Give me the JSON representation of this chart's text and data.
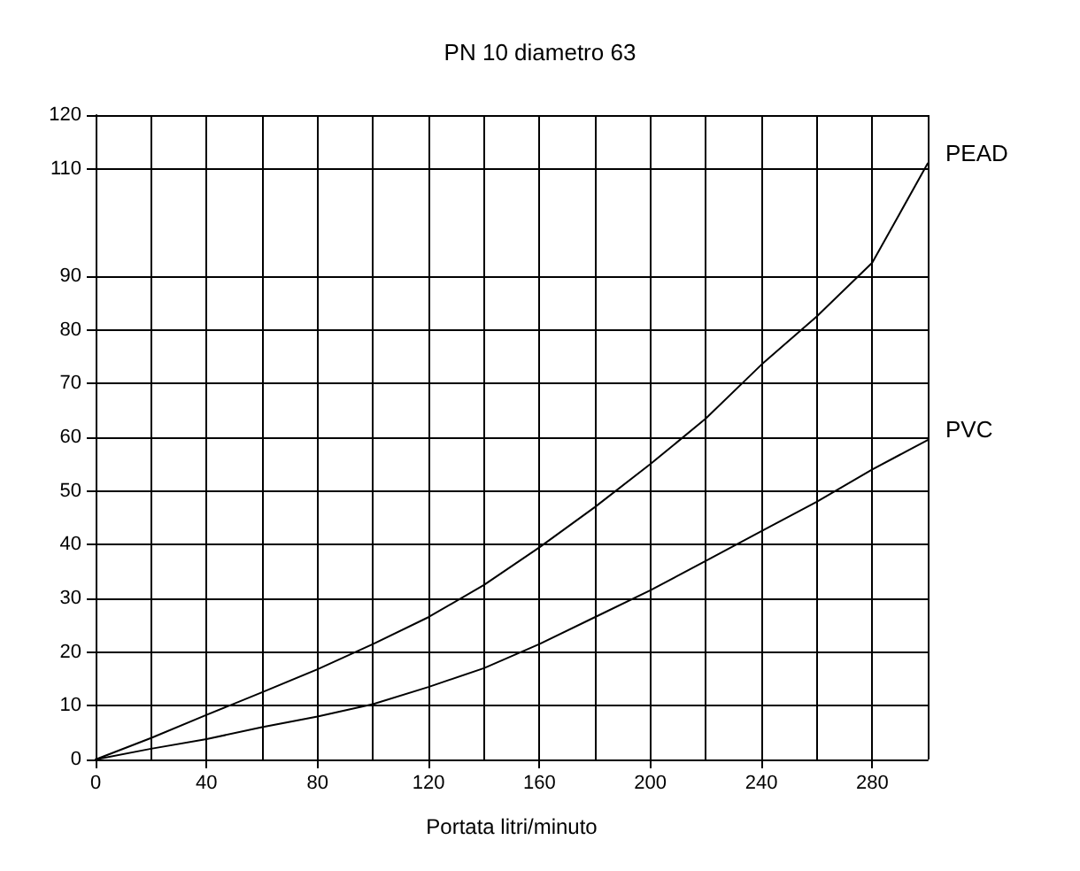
{
  "chart_data": {
    "type": "line",
    "title": "PN 10 diametro 63",
    "xlabel": "Portata litri/minuto",
    "x": [
      0,
      20,
      40,
      60,
      80,
      100,
      120,
      140,
      160,
      180,
      200,
      220,
      240,
      260,
      280,
      300
    ],
    "series": [
      {
        "name": "PEAD",
        "color": "#000000",
        "values": [
          0,
          4,
          8.3,
          12.5,
          16.8,
          21.5,
          26.5,
          32.5,
          39.5,
          47,
          55,
          63.5,
          73.5,
          82.5,
          92.5,
          111
        ]
      },
      {
        "name": "PVC",
        "color": "#000000",
        "values": [
          0,
          2,
          3.8,
          6,
          8,
          10.3,
          13.5,
          17,
          21.5,
          26.5,
          31.5,
          37,
          42.5,
          48,
          54,
          59.5
        ]
      }
    ],
    "xlim": [
      0,
      300
    ],
    "xticks": [
      0,
      {
        "value": 20,
        "label": null
      },
      40,
      {
        "value": 60,
        "label": null
      },
      80,
      {
        "value": 100,
        "label": null
      },
      120,
      {
        "value": 140,
        "label": null
      },
      160,
      {
        "value": 180,
        "label": null
      },
      200,
      {
        "value": 220,
        "label": null
      },
      240,
      {
        "value": 260,
        "label": null
      },
      280,
      {
        "value": 300,
        "label": null
      }
    ],
    "ylim": [
      0,
      120
    ],
    "yticks": [
      0,
      10,
      20,
      30,
      40,
      50,
      60,
      70,
      80,
      90,
      110,
      120
    ],
    "grid": true,
    "legend": false,
    "marker": "none",
    "line_style": "solid"
  }
}
